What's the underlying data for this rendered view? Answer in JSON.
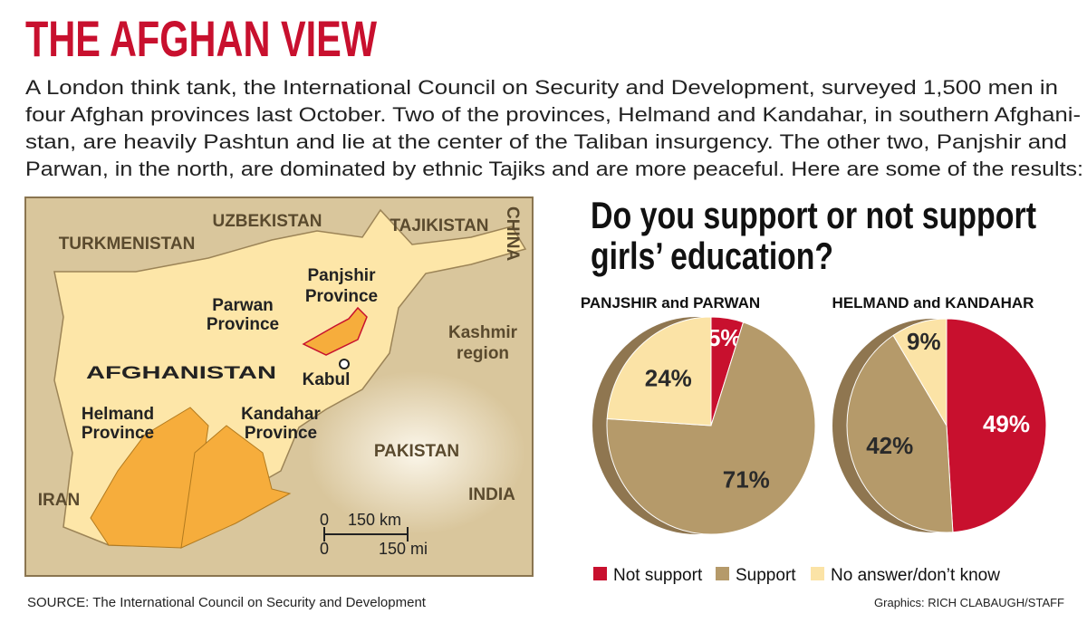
{
  "header": {
    "title": "THE AFGHAN VIEW",
    "intro_lines": [
      "A London think tank, the International Council on Security and Development, surveyed 1,500 men in",
      "four Afghan provinces last October. Two of the provinces, Helmand and Kandahar, in southern Afghani-",
      "stan, are heavily Pashtun and lie at the center of the Taliban insurgency. The other two, Panjshir and",
      "Parwan, in the north, are dominated by ethnic Tajiks and are more peaceful. Here are some of the results:"
    ]
  },
  "map": {
    "labels": [
      "UZBEKISTAN",
      "TAJIKISTAN",
      "CHINA",
      "TURKMENISTAN",
      "Panjshir",
      "Province",
      "Parwan",
      "Province",
      "Kashmir",
      "region",
      "AFGHANISTAN",
      "Kabul",
      "Helmand",
      "Province",
      "Kandahar",
      "Province",
      "PAKISTAN",
      "IRAN",
      "INDIA"
    ],
    "scale": [
      "0",
      "150 km",
      "0",
      "150 mi"
    ]
  },
  "question_lines": [
    "Do you support or not support",
    "girls’ education?"
  ],
  "chart_data": [
    {
      "type": "pie",
      "subtitle": "PANJSHIR and PARWAN",
      "categories": [
        "Not support",
        "Support",
        "No answer/don’t know"
      ],
      "colors": [
        "#c8102e",
        "#b59a6a",
        "#fbe3a6"
      ],
      "values": [
        5,
        71,
        24
      ],
      "value_labels": [
        "5%",
        "71%",
        "24%"
      ]
    },
    {
      "type": "pie",
      "subtitle": "HELMAND and KANDAHAR",
      "categories": [
        "Not support",
        "Support",
        "No answer/don’t know"
      ],
      "colors": [
        "#c8102e",
        "#b59a6a",
        "#fbe3a6"
      ],
      "values": [
        49,
        42,
        9
      ],
      "value_labels": [
        "49%",
        "42%",
        "9%"
      ]
    }
  ],
  "footer": {
    "source": "SOURCE: The International Council on Security and Development",
    "credit": "Graphics: RICH CLABAUGH/STAFF"
  }
}
